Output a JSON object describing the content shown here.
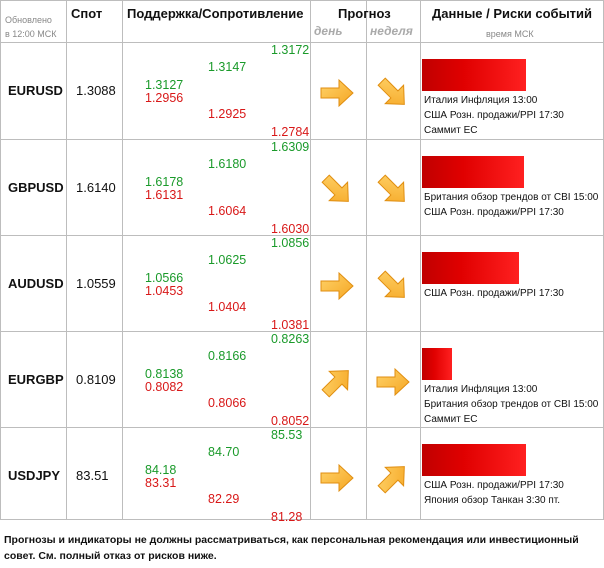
{
  "header": {
    "updated_label_line1": "Обновлено",
    "updated_label_line2": "в 12:00 МСК",
    "spot": "Спот",
    "support_resistance": "Поддержка/Сопротивление",
    "forecast": "Прогноз",
    "forecast_day": "день",
    "forecast_week": "неделя",
    "events": "Данные / Риски событий",
    "events_sub": "время МСК"
  },
  "rows": [
    {
      "pair": "EURUSD",
      "spot": "1.3088",
      "levels": {
        "s1": "1.3127",
        "s1r": "1.2956",
        "s2": "1.3147",
        "s2r": "1.2925",
        "s3": "1.3172",
        "s3r": "1.2784"
      },
      "forecast_day": "right",
      "forecast_week": "down-right",
      "risk_level": 1.0,
      "events": [
        "Италия Инфляция 13:00",
        "США Розн. продажи/PPI 17:30",
        "Саммит ЕС"
      ]
    },
    {
      "pair": "GBPUSD",
      "spot": "1.6140",
      "levels": {
        "s1": "1.6178",
        "s1r": "1.6131",
        "s2": "1.6180",
        "s2r": "1.6064",
        "s3": "1.6309",
        "s3r": "1.6030"
      },
      "forecast_day": "down-right",
      "forecast_week": "down-right",
      "risk_level": 0.98,
      "events": [
        "Британия обзор трендов от CBI 15:00",
        "США Розн. продажи/PPI 17:30"
      ]
    },
    {
      "pair": "AUDUSD",
      "spot": "1.0559",
      "levels": {
        "s1": "1.0566",
        "s1r": "1.0453",
        "s2": "1.0625",
        "s2r": "1.0404",
        "s3": "1.0856",
        "s3r": "1.0381"
      },
      "forecast_day": "right",
      "forecast_week": "down-right",
      "risk_level": 0.93,
      "events": [
        "США Розн. продажи/PPI 17:30"
      ]
    },
    {
      "pair": "EURGBP",
      "spot": "0.8109",
      "levels": {
        "s1": "0.8138",
        "s1r": "0.8082",
        "s2": "0.8166",
        "s2r": "0.8066",
        "s3": "0.8263",
        "s3r": "0.8052"
      },
      "forecast_day": "up-right",
      "forecast_week": "right",
      "risk_level": 0.29,
      "events": [
        "Италия Инфляция 13:00",
        "Британия обзор трендов от CBI 15:00",
        "Саммит ЕС"
      ]
    },
    {
      "pair": "USDJPY",
      "spot": "83.51",
      "levels": {
        "s1": "84.18",
        "s1r": "83.31",
        "s2": "84.70",
        "s2r": "82.29",
        "s3": "85.53",
        "s3r": "81.28"
      },
      "forecast_day": "right",
      "forecast_week": "up-right",
      "risk_level": 1.0,
      "events": [
        "США Розн. продажи/PPI 17:30",
        "Япония обзор Танкан 3:30 пт."
      ]
    }
  ],
  "footer": {
    "line1": "Прогнозы и индикаторы не должны рассматриваться, как персональная рекомендация или инвестиционный",
    "line2": "совет. См. полный отказ от рисков ниже."
  },
  "colors": {
    "green": "#1a9a2a",
    "red": "#d81818",
    "arrow": "#f5a623",
    "bar": "#d00000"
  }
}
